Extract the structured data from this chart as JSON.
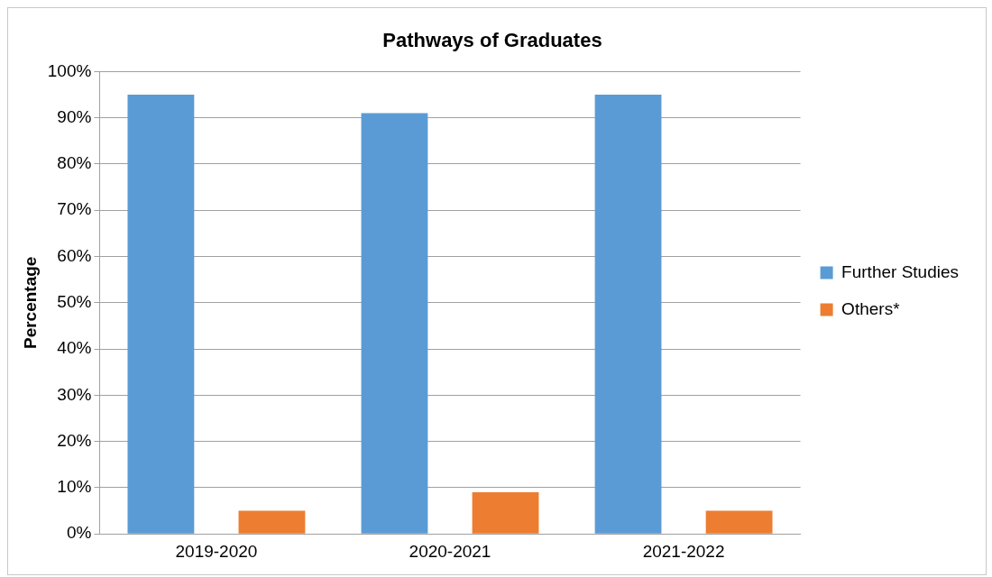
{
  "chart_data": {
    "type": "bar",
    "title": "Pathways of Graduates",
    "ylabel": "Percentage",
    "categories": [
      "2019-2020",
      "2020-2021",
      "2021-2022"
    ],
    "series": [
      {
        "name": "Further Studies",
        "color": "#5b9bd5",
        "values": [
          95,
          91,
          95
        ]
      },
      {
        "name": "Others*",
        "color": "#ed7d31",
        "values": [
          5,
          9,
          5
        ]
      }
    ],
    "ylim": [
      0,
      100
    ],
    "yticks": [
      {
        "value": 0,
        "label": "0%"
      },
      {
        "value": 10,
        "label": "10%"
      },
      {
        "value": 20,
        "label": "20%"
      },
      {
        "value": 30,
        "label": "30%"
      },
      {
        "value": 40,
        "label": "40%"
      },
      {
        "value": 50,
        "label": "50%"
      },
      {
        "value": 60,
        "label": "60%"
      },
      {
        "value": 70,
        "label": "70%"
      },
      {
        "value": 80,
        "label": "80%"
      },
      {
        "value": 90,
        "label": "90%"
      },
      {
        "value": 100,
        "label": "100%"
      }
    ],
    "grid": "y",
    "legend": "right"
  }
}
